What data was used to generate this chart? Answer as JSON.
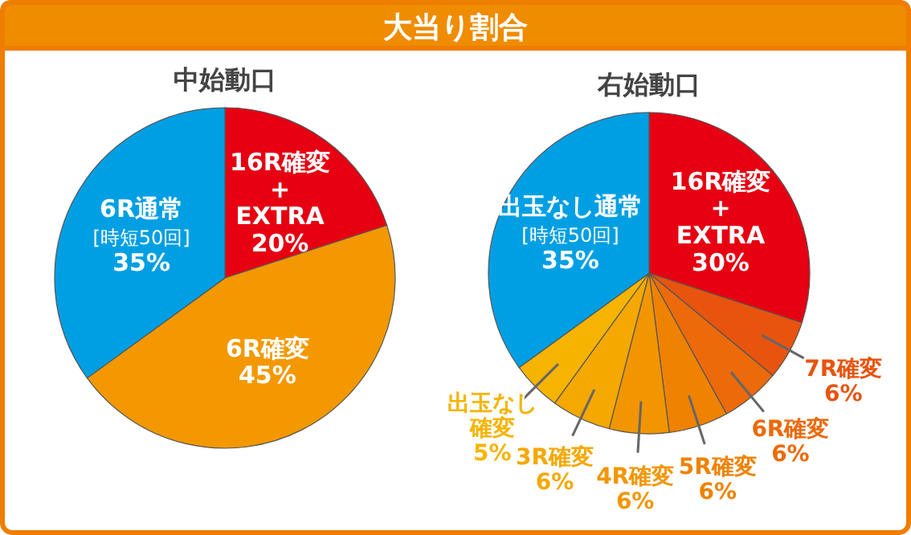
{
  "chart_data": [
    {
      "type": "pie",
      "title": "大当り割合",
      "subtitle": "中始動口",
      "categories": [
        "16R確変\n+\nEXTRA",
        "6R確変",
        "6R通常\n[時短50回]"
      ],
      "values": [
        20,
        45,
        35
      ],
      "value_labels": [
        "20%",
        "45%",
        "35%"
      ],
      "colors": [
        "#e60012",
        "#f39800",
        "#009fe3"
      ]
    },
    {
      "type": "pie",
      "subtitle": "右始動口",
      "categories": [
        "16R確変\n+\nEXTRA",
        "7R確変",
        "6R確変",
        "5R確変",
        "4R確変",
        "3R確変",
        "出玉なし確変",
        "出玉なし通常\n[時短50回]"
      ],
      "values": [
        30,
        6,
        6,
        6,
        6,
        6,
        5,
        35
      ],
      "value_labels": [
        "30%",
        "6%",
        "6%",
        "6%",
        "6%",
        "6%",
        "5%",
        "35%"
      ],
      "colors": [
        "#e60012",
        "#e8540e",
        "#ec6a0a",
        "#ef8200",
        "#f29600",
        "#f5a800",
        "#f6b400",
        "#009fe3"
      ]
    }
  ]
}
